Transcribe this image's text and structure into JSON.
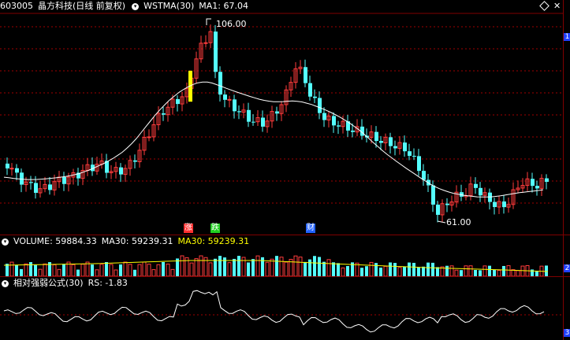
{
  "header": {
    "code": "603005",
    "name": "晶方科技(日线 前复权)",
    "indicator": "WSTMA(30)",
    "ma_label": "MA1: 67.04",
    "diamond_icon": "diamond-icon"
  },
  "annotations": {
    "high": "106.00",
    "low": "61.00"
  },
  "tags": [
    {
      "text": "涨",
      "color": "#ff3030"
    },
    {
      "text": "跌",
      "color": "#20d020"
    },
    {
      "text": "财",
      "color": "#2060ff"
    }
  ],
  "right_markers": [
    "1",
    "2",
    "3"
  ],
  "volume_header": {
    "title": "VOLUME: 59884.33",
    "ma30_a": "MA30: 59239.31",
    "ma30_b": "MA30: 59239.31"
  },
  "rs_header": {
    "title": "相对强弱公式(30)",
    "rs": "RS: -1.83"
  },
  "colors": {
    "up": "#ff3c3c",
    "down": "#54ffff",
    "ma": "#ffffff",
    "grid": "#a00000",
    "highlight": "#ffff00"
  }
}
